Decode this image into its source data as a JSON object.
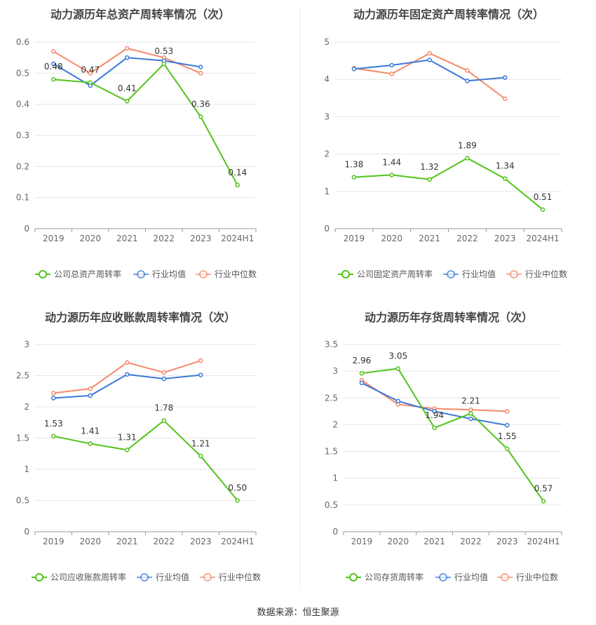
{
  "footer": {
    "source": "数据来源：恒生聚源"
  },
  "chart_data": [
    {
      "type": "line",
      "title": "动力源历年总资产周转率情况（次）",
      "categories": [
        "2019",
        "2020",
        "2021",
        "2022",
        "2023",
        "2024H1"
      ],
      "ylim": [
        0,
        0.6
      ],
      "yticks": [
        "0",
        "0.1",
        "0.2",
        "0.3",
        "0.4",
        "0.5",
        "0.6"
      ],
      "grid": true,
      "legend_position": "bottom",
      "series": [
        {
          "name": "公司总资产周转率",
          "color": "#52c41a",
          "values": [
            0.48,
            0.47,
            0.41,
            0.53,
            0.36,
            0.14
          ],
          "labels": [
            "0.48",
            "0.47",
            "0.41",
            "0.53",
            "0.36",
            "0.14"
          ]
        },
        {
          "name": "行业均值",
          "color": "#3a78d8",
          "values": [
            0.53,
            0.46,
            0.55,
            0.54,
            0.52,
            null
          ]
        },
        {
          "name": "行业中位数",
          "color": "#f5896a",
          "values": [
            0.57,
            0.5,
            0.58,
            0.55,
            0.5,
            null
          ]
        }
      ]
    },
    {
      "type": "line",
      "title": "动力源历年固定资产周转率情况（次）",
      "categories": [
        "2019",
        "2020",
        "2021",
        "2022",
        "2023",
        "2024H1"
      ],
      "ylim": [
        0,
        5
      ],
      "yticks": [
        "0",
        "1",
        "2",
        "3",
        "4",
        "5"
      ],
      "grid": true,
      "legend_position": "bottom",
      "series": [
        {
          "name": "公司固定资产周转率",
          "color": "#52c41a",
          "values": [
            1.38,
            1.44,
            1.32,
            1.89,
            1.34,
            0.51
          ],
          "labels": [
            "1.38",
            "1.44",
            "1.32",
            "1.89",
            "1.34",
            "0.51"
          ]
        },
        {
          "name": "行业均值",
          "color": "#3a78d8",
          "values": [
            4.28,
            4.38,
            4.52,
            3.96,
            4.05,
            null
          ]
        },
        {
          "name": "行业中位数",
          "color": "#f5896a",
          "values": [
            4.3,
            4.15,
            4.7,
            4.24,
            3.48,
            null
          ]
        }
      ]
    },
    {
      "type": "line",
      "title": "动力源历年应收账款周转率情况（次）",
      "categories": [
        "2019",
        "2020",
        "2021",
        "2022",
        "2023",
        "2024H1"
      ],
      "ylim": [
        0,
        3
      ],
      "yticks": [
        "0",
        "0.5",
        "1",
        "1.5",
        "2",
        "2.5",
        "3"
      ],
      "grid": true,
      "legend_position": "bottom",
      "series": [
        {
          "name": "公司应收账款周转率",
          "color": "#52c41a",
          "values": [
            1.53,
            1.41,
            1.31,
            1.78,
            1.21,
            0.5
          ],
          "labels": [
            "1.53",
            "1.41",
            "1.31",
            "1.78",
            "1.21",
            "0.50"
          ]
        },
        {
          "name": "行业均值",
          "color": "#3a78d8",
          "values": [
            2.14,
            2.18,
            2.52,
            2.45,
            2.51,
            null
          ]
        },
        {
          "name": "行业中位数",
          "color": "#f5896a",
          "values": [
            2.22,
            2.29,
            2.71,
            2.55,
            2.74,
            null
          ]
        }
      ]
    },
    {
      "type": "line",
      "title": "动力源历年存货周转率情况（次）",
      "categories": [
        "2019",
        "2020",
        "2021",
        "2022",
        "2023",
        "2024H1"
      ],
      "ylim": [
        0,
        3.5
      ],
      "yticks": [
        "0",
        "0.5",
        "1",
        "1.5",
        "2",
        "2.5",
        "3",
        "3.5"
      ],
      "grid": true,
      "legend_position": "bottom",
      "series": [
        {
          "name": "公司存货周转率",
          "color": "#52c41a",
          "values": [
            2.96,
            3.05,
            1.94,
            2.21,
            1.55,
            0.57
          ],
          "labels": [
            "2.96",
            "3.05",
            "1.94",
            "2.21",
            "1.55",
            "0.57"
          ]
        },
        {
          "name": "行业均值",
          "color": "#3a78d8",
          "values": [
            2.78,
            2.44,
            2.25,
            2.11,
            1.99,
            null
          ]
        },
        {
          "name": "行业中位数",
          "color": "#f5896a",
          "values": [
            2.83,
            2.38,
            2.3,
            2.28,
            2.25,
            null
          ]
        }
      ]
    }
  ]
}
